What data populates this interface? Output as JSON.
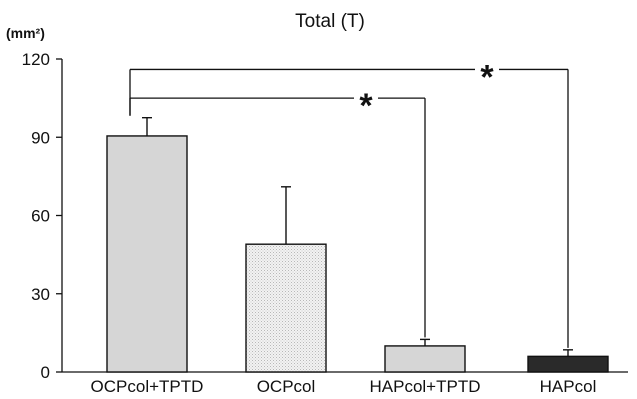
{
  "chart_data": {
    "type": "bar",
    "title": "Total (T)",
    "ylabel": "(mm²)",
    "xlabel": "",
    "categories": [
      "OCPcol+TPTD",
      "OCPcol",
      "HAPcol+TPTD",
      "HAPcol"
    ],
    "values": [
      90.5,
      49,
      10,
      6
    ],
    "error_upper": [
      97.5,
      71,
      12.5,
      8.5
    ],
    "ylim": [
      0,
      120
    ],
    "yticks": [
      0,
      30,
      60,
      90,
      120
    ],
    "bar_colors": [
      "#d6d6d6",
      "#eeeeee",
      "#d6d6d6",
      "#2a2a2a"
    ],
    "bar_patterns": [
      "solid",
      "dotted",
      "solid",
      "solid"
    ],
    "significance": [
      {
        "from": "OCPcol+TPTD",
        "to": "HAPcol+TPTD",
        "label": "*",
        "bracket_y": 105
      },
      {
        "from": "OCPcol+TPTD",
        "to": "HAPcol",
        "label": "*",
        "bracket_y": 116
      }
    ],
    "grid": false,
    "legend": "none"
  }
}
